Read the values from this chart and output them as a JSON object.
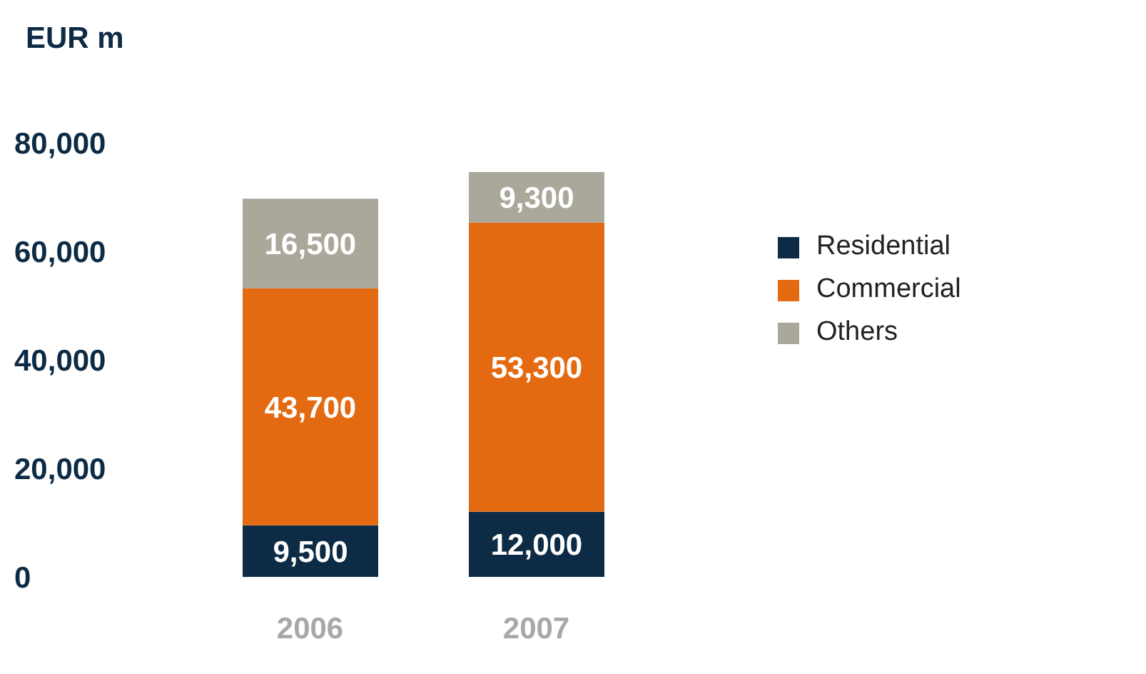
{
  "chart_data": {
    "type": "bar",
    "stacked": true,
    "ylabel": "EUR m",
    "categories": [
      "2006",
      "2007"
    ],
    "series": [
      {
        "name": "Residential",
        "color": "#0d2b45",
        "values": [
          9500,
          12000
        ],
        "value_labels": [
          "9,500",
          "12,000"
        ]
      },
      {
        "name": "Commercial",
        "color": "#e46a12",
        "values": [
          43700,
          53300
        ],
        "value_labels": [
          "43,700",
          "53,300"
        ]
      },
      {
        "name": "Others",
        "color": "#aaa79b",
        "values": [
          16500,
          9300
        ],
        "value_labels": [
          "16,500",
          "9,300"
        ]
      }
    ],
    "ylim": [
      0,
      80000
    ],
    "yticks": [
      0,
      {
        "value": 20000,
        "label": "20,000"
      },
      {
        "value": 40000,
        "label": "40,000"
      },
      {
        "value": 60000,
        "label": "60,000"
      },
      {
        "value": 80000,
        "label": "80,000"
      }
    ],
    "legend": "right",
    "grid": false
  }
}
